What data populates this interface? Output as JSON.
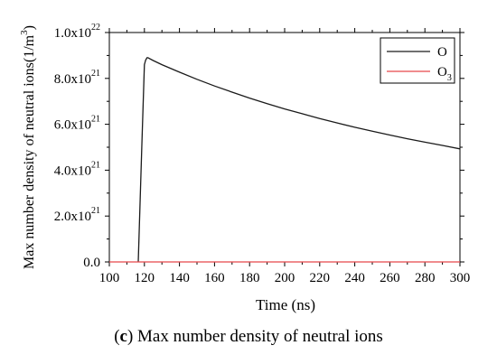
{
  "chart_data": {
    "type": "line",
    "title": "",
    "xlabel": "Time (ns)",
    "ylabel": "Max number density of neutral ions(1/m",
    "ylabel_superscript": "3",
    "ylabel_suffix": ")",
    "xlim": [
      100,
      300
    ],
    "ylim": [
      0,
      1e+22
    ],
    "x_ticks": [
      "100",
      "120",
      "140",
      "160",
      "180",
      "200",
      "220",
      "240",
      "260",
      "280",
      "300"
    ],
    "y_ticks": [
      {
        "value": 0,
        "mantissa": "0.0",
        "exponent": ""
      },
      {
        "value": 2e+21,
        "mantissa": "2.0x10",
        "exponent": "21"
      },
      {
        "value": 4e+21,
        "mantissa": "4.0x10",
        "exponent": "21"
      },
      {
        "value": 6e+21,
        "mantissa": "6.0x10",
        "exponent": "21"
      },
      {
        "value": 8e+21,
        "mantissa": "8.0x10",
        "exponent": "21"
      },
      {
        "value": 1e+22,
        "mantissa": "1.0x10",
        "exponent": "22"
      }
    ],
    "grid": false,
    "legend_position": "top-right",
    "series": [
      {
        "name": "O",
        "name_subscript": "",
        "color": "#1a1a1a",
        "x": [
          116.5,
          118.5,
          120.0,
          120.7,
          121.5,
          122.0,
          125,
          130,
          140,
          150,
          160,
          170,
          180,
          190,
          200,
          210,
          220,
          230,
          240,
          250,
          260,
          270,
          280,
          290,
          300
        ],
        "y": [
          0,
          5e+21,
          8.6e+21,
          8.8e+21,
          8.9e+21,
          8.9e+21,
          8.78e+21,
          8.6e+21,
          8.27e+21,
          7.96e+21,
          7.67e+21,
          7.4e+21,
          7.14e+21,
          6.9e+21,
          6.67e+21,
          6.46e+21,
          6.25e+21,
          6.06e+21,
          5.87e+21,
          5.7e+21,
          5.53e+21,
          5.37e+21,
          5.22e+21,
          5.08e+21,
          4.93e+21
        ]
      },
      {
        "name": "O",
        "name_subscript": "3",
        "color": "#e8474b",
        "x": [
          100,
          300
        ],
        "y": [
          0,
          0
        ]
      }
    ]
  },
  "caption": {
    "letter": "c",
    "text": " Max number density of neutral ions"
  }
}
